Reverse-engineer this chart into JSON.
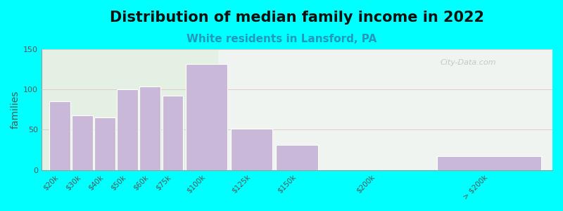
{
  "title": "Distribution of median family income in 2022",
  "subtitle": "White residents in Lansford, PA",
  "ylabel": "families",
  "background_outer": "#00FFFF",
  "bar_color": "#c9b8d8",
  "bar_edge_color": "#ffffff",
  "categories": [
    "$20k",
    "$30k",
    "$40k",
    "$50k",
    "$60k",
    "$75k",
    "$100k",
    "$125k",
    "$150k",
    "$200k",
    "> $200k"
  ],
  "values": [
    85,
    68,
    65,
    100,
    104,
    92,
    132,
    51,
    31,
    0,
    17
  ],
  "left_edges": [
    0,
    1,
    2,
    3,
    4,
    5,
    6,
    8,
    10,
    12,
    17
  ],
  "widths": [
    1,
    1,
    1,
    1,
    1,
    1,
    2,
    2,
    2,
    5,
    5
  ],
  "ylim": [
    0,
    150
  ],
  "yticks": [
    0,
    50,
    100,
    150
  ],
  "title_fontsize": 15,
  "subtitle_fontsize": 11,
  "subtitle_color": "#2299bb",
  "ylabel_fontsize": 10,
  "watermark": "City-Data.com",
  "bg_left_color": "#e4f0e4",
  "bg_right_color": "#f0f4f0",
  "bg_split": 7,
  "total_width": 22
}
